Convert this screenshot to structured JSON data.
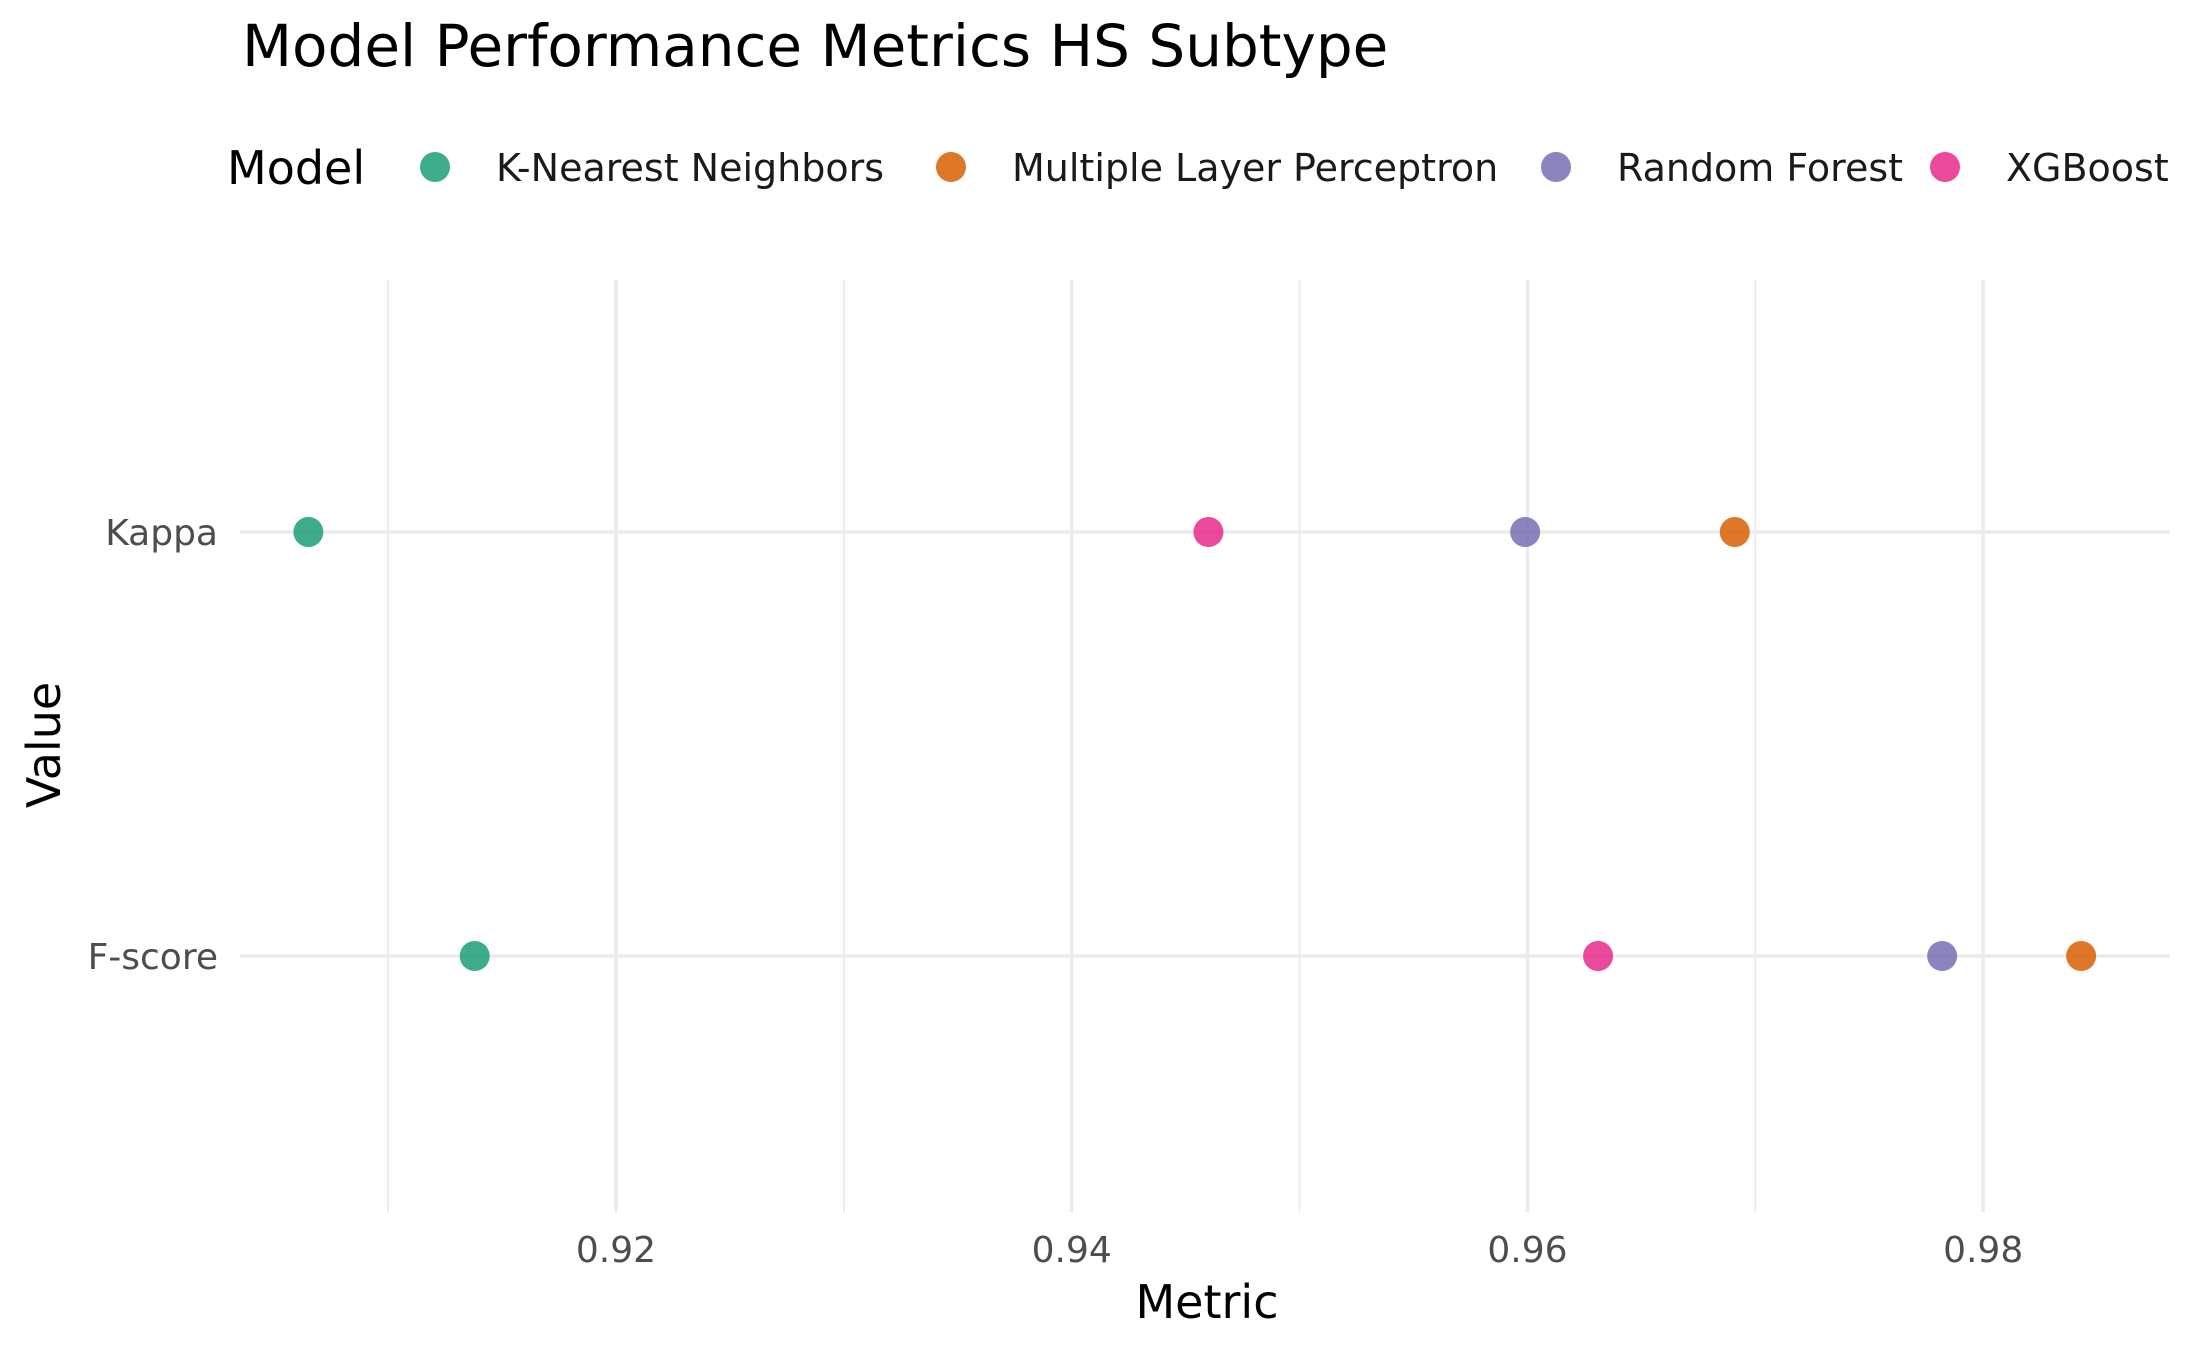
{
  "chart_data": {
    "type": "scatter",
    "title": "Model Performance Metrics HS Subtype",
    "xlabel": "Metric",
    "ylabel": "Value",
    "xlim": [
      0.9035,
      0.9882
    ],
    "x_ticks": [
      0.92,
      0.94,
      0.96,
      0.98
    ],
    "x_tick_labels": [
      "0.92",
      "0.94",
      "0.96",
      "0.98"
    ],
    "categories": [
      "Kappa",
      "F-score"
    ],
    "legend": {
      "title": "Model",
      "position": "top"
    },
    "grid": true,
    "series": [
      {
        "name": "K-Nearest Neighbors",
        "color": "#1b9e77",
        "values": [
          0.9065,
          0.9138
        ]
      },
      {
        "name": "Multiple Layer Perceptron",
        "color": "#d95f02",
        "values": [
          0.9691,
          0.9843
        ]
      },
      {
        "name": "Random Forest",
        "color": "#7570b3",
        "values": [
          0.9599,
          0.9782
        ]
      },
      {
        "name": "XGBoost",
        "color": "#e7298a",
        "values": [
          0.946,
          0.9631
        ]
      }
    ]
  }
}
